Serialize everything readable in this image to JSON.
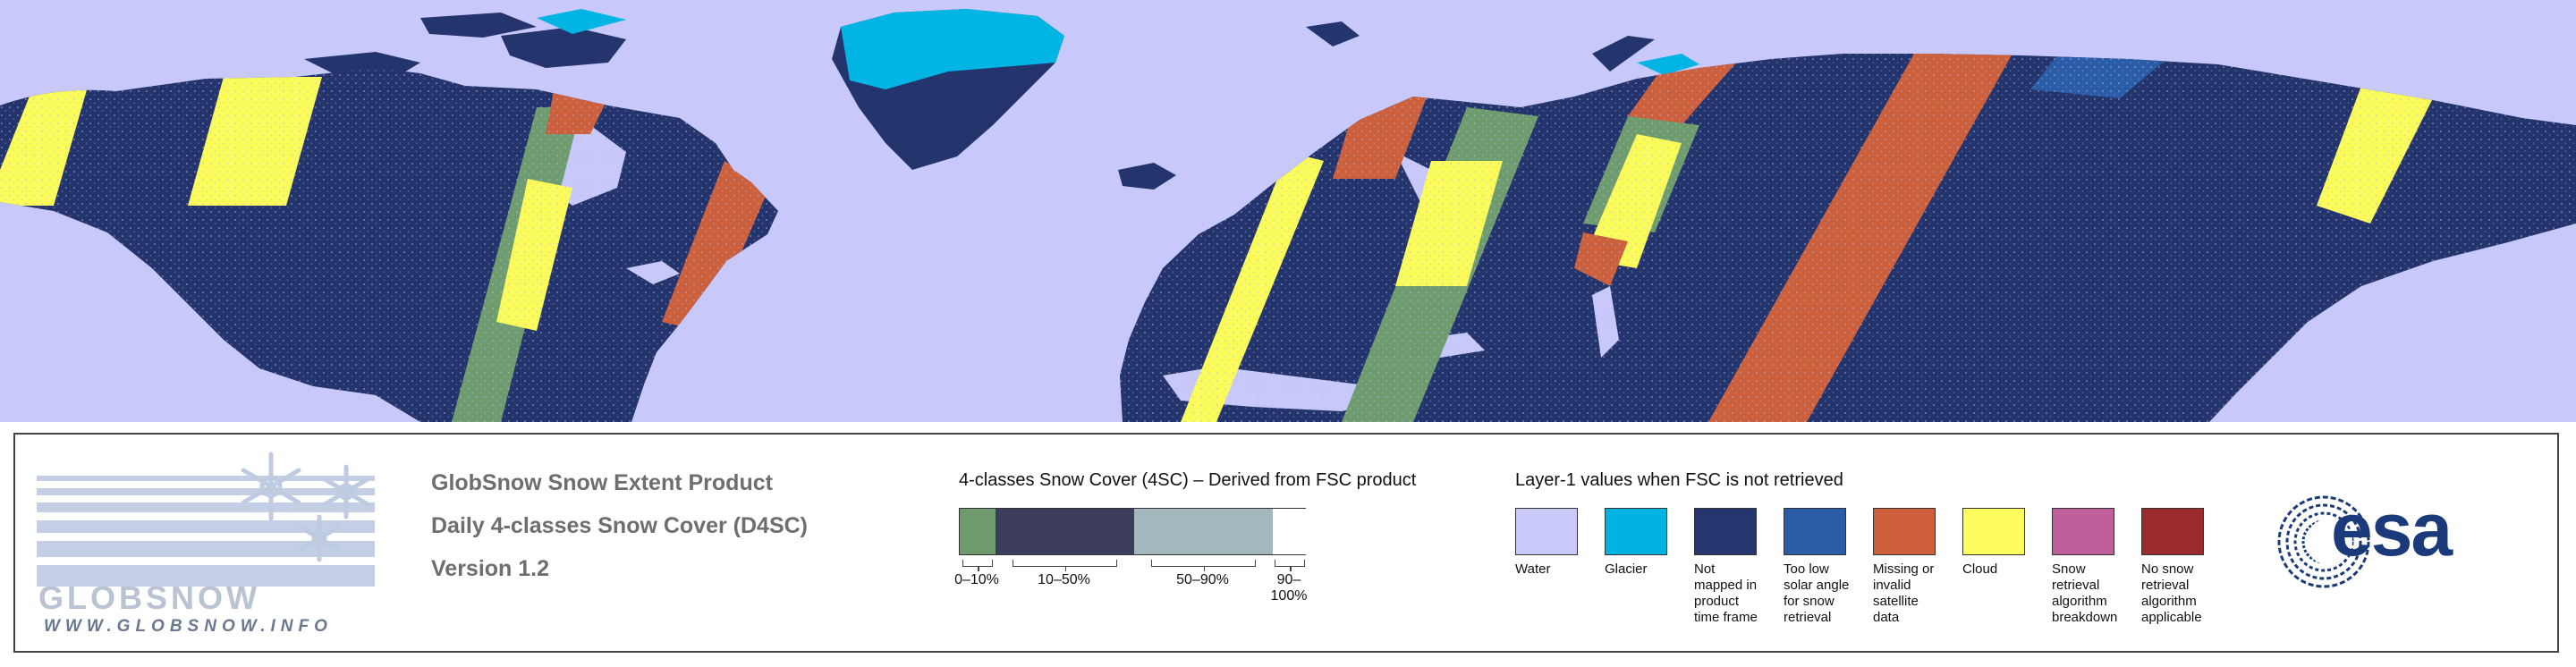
{
  "map": {
    "colors": {
      "water": "#c8c8fa",
      "land": "#24346c",
      "glacier": "#00b4e4",
      "missing": "#cc5f3c",
      "cloud": "#fbfb5a",
      "snow_0_10": "#6f9c6f",
      "frost": "#b6bce6"
    }
  },
  "logo": {
    "wordmark": "GLOBSNOW",
    "url": "WWW.GLOBSNOW.INFO",
    "stripe_color": "#c4cfe5",
    "flake_color": "#bfcbe0"
  },
  "product": {
    "line1": "GlobSnow Snow Extent Product",
    "line2": "Daily 4-classes Snow Cover (D4SC)",
    "line3": "Version 1.2"
  },
  "snow_cover": {
    "title": "4-classes Snow Cover (4SC) – Derived from FSC product",
    "classes": [
      {
        "label": "0–10%",
        "color": "#6e9a6e"
      },
      {
        "label": "10–50%",
        "color": "#3c3c5c"
      },
      {
        "label": "50–90%",
        "color": "#a3b8bd"
      },
      {
        "label": "90–100%",
        "color": "#ffffff"
      }
    ]
  },
  "layer1": {
    "title": "Layer-1 values when FSC is not retrieved",
    "categories": [
      {
        "color": "#c8c8fa",
        "lines": [
          "Water"
        ]
      },
      {
        "color": "#00b3e3",
        "lines": [
          "Glacier"
        ]
      },
      {
        "color": "#25356d",
        "lines": [
          "Not",
          "mapped in",
          "product",
          "time frame"
        ]
      },
      {
        "color": "#2b5ca8",
        "lines": [
          "Too low",
          "solar angle",
          "for snow",
          "retrieval"
        ]
      },
      {
        "color": "#cd5f3b",
        "lines": [
          "Missing or",
          "invalid satellite",
          "data"
        ]
      },
      {
        "color": "#fdfd60",
        "lines": [
          "Cloud"
        ]
      },
      {
        "color": "#c0609b",
        "lines": [
          "Snow retrieval",
          "algorithm",
          "breakdown"
        ]
      },
      {
        "color": "#9a2a2e",
        "lines": [
          "No snow",
          "retrieval",
          "algorithm",
          "applicable"
        ]
      }
    ]
  },
  "esa": {
    "text": "esa",
    "color": "#1b3a7a"
  }
}
